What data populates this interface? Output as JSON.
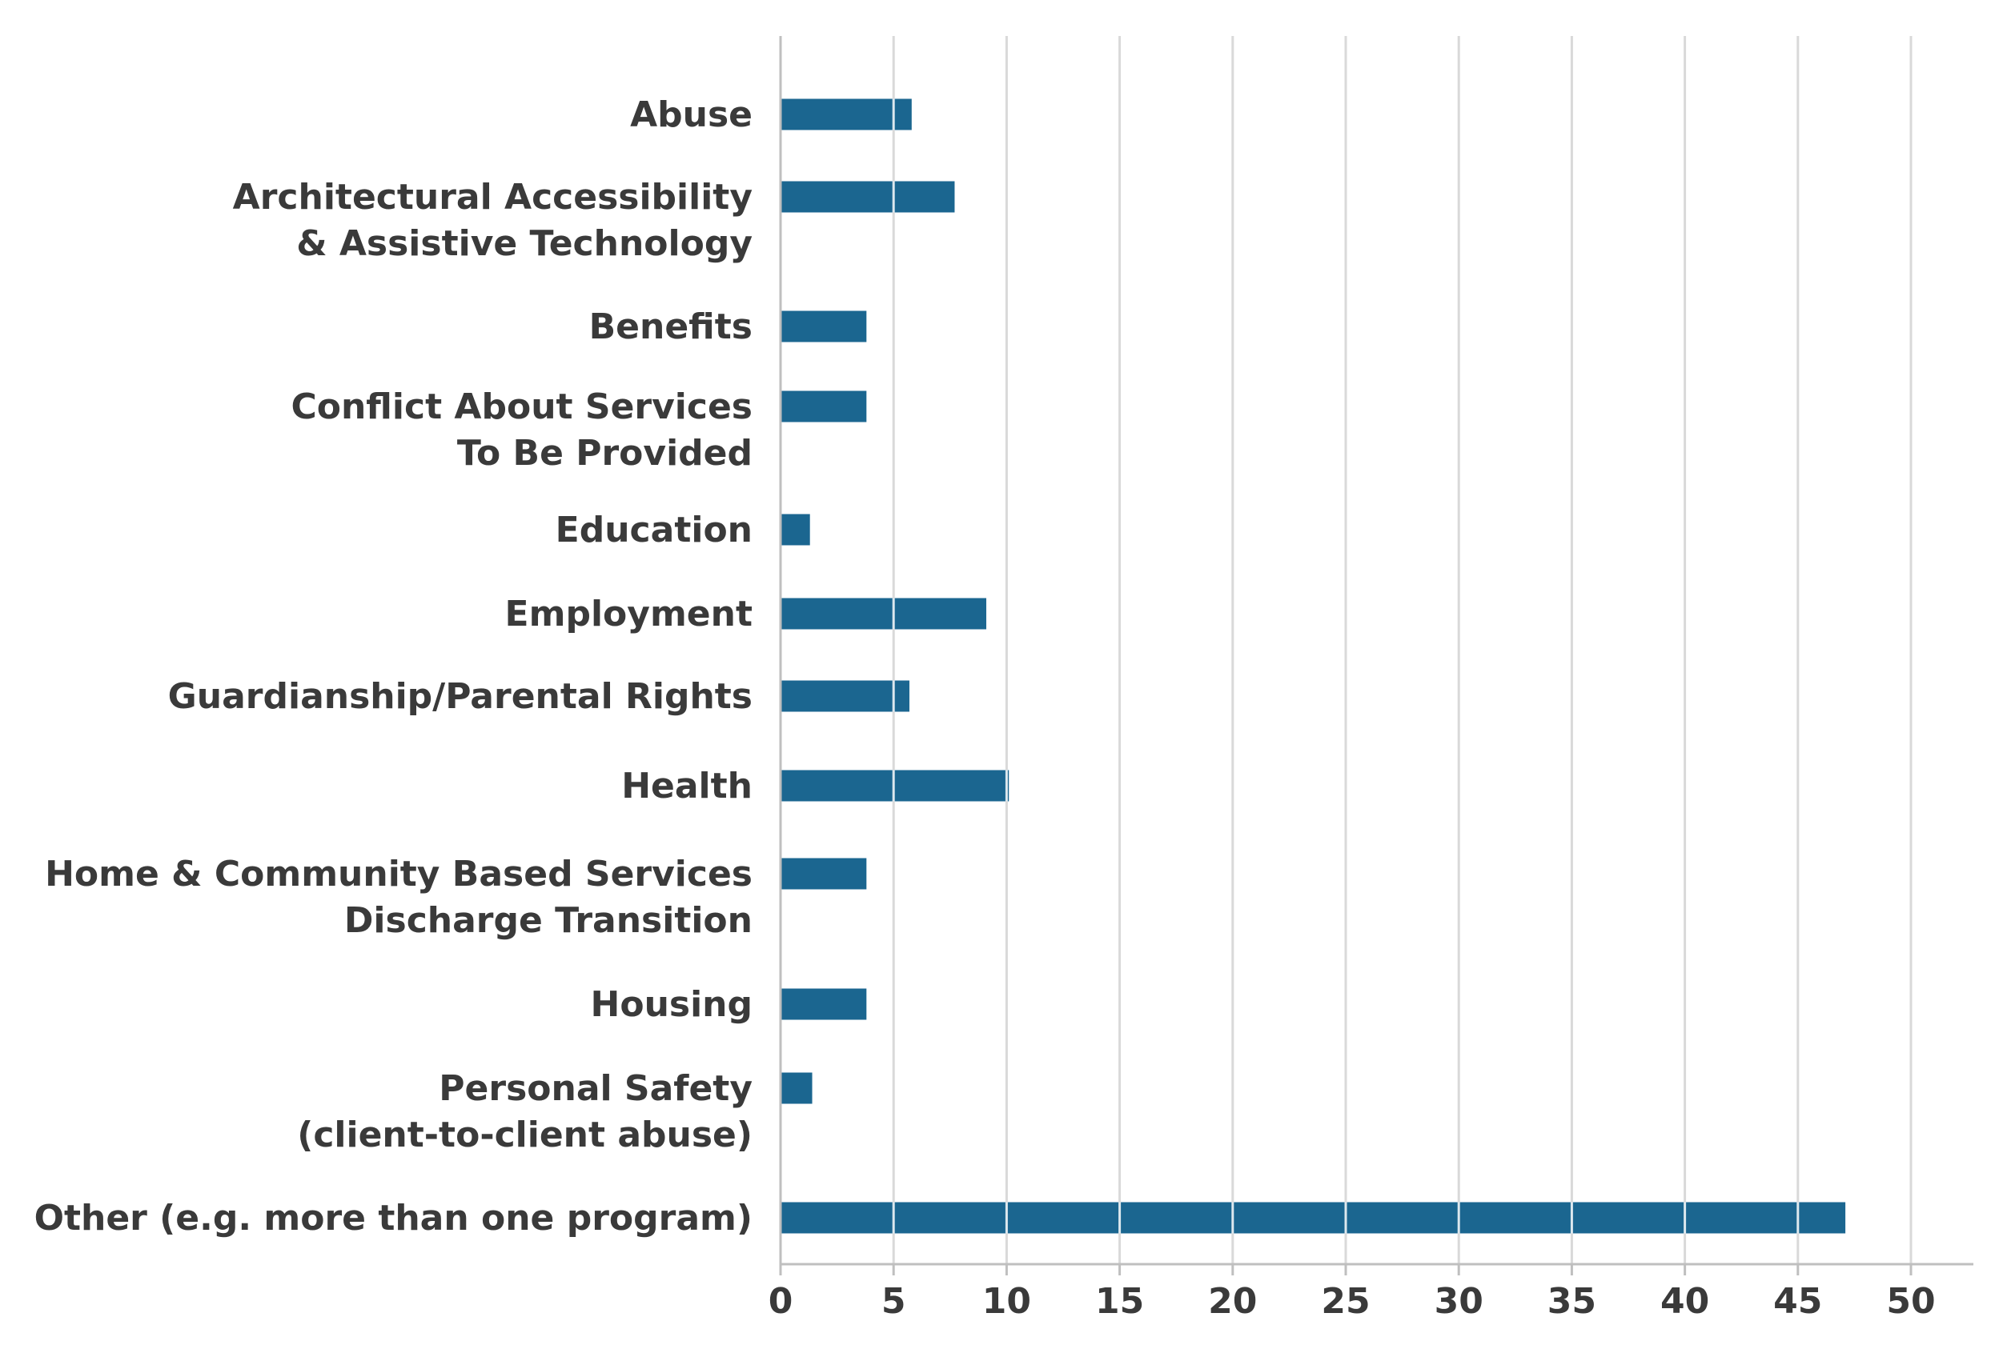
{
  "chart_data": {
    "type": "bar",
    "orientation": "horizontal",
    "title": "",
    "xlabel": "",
    "ylabel": "",
    "categories": [
      [
        "Abuse"
      ],
      [
        "Architectural Accessibility",
        "& Assistive Technology"
      ],
      [
        "Benefits"
      ],
      [
        "Conflict About Services",
        "To Be Provided"
      ],
      [
        "Education"
      ],
      [
        "Employment"
      ],
      [
        "Guardianship/Parental Rights"
      ],
      [
        "Health"
      ],
      [
        "Home & Community Based Services",
        "Discharge Transition"
      ],
      [
        "Housing"
      ],
      [
        "Personal Safety",
        "(client-to-client abuse)"
      ],
      [
        "Other (e.g. more than one program)"
      ]
    ],
    "values": [
      5.8,
      7.7,
      3.8,
      3.8,
      1.3,
      9.1,
      5.7,
      10.1,
      3.8,
      3.8,
      1.4,
      47.1
    ],
    "xlim": [
      0,
      52
    ],
    "xticks": [
      0,
      5,
      10,
      15,
      20,
      25,
      30,
      35,
      40,
      45,
      50
    ],
    "grid": "vertical",
    "legend": "none",
    "colors": {
      "bar": "#1b6690",
      "grid": "#d9d9d9",
      "axis": "#bfbfbf",
      "text": "#3a3a3a"
    }
  }
}
